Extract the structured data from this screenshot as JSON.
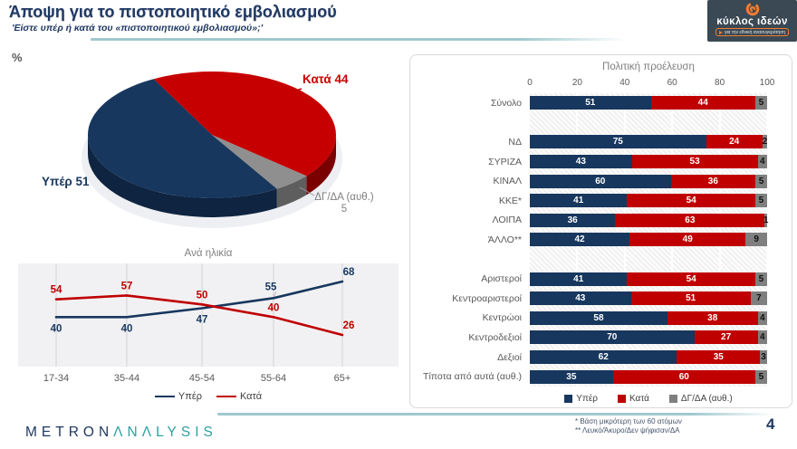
{
  "header": {
    "title": "Άποψη για το πιστοποιητικό εμβολιασμού",
    "subtitle": "'Είστε υπέρ ή κατά του «πιστοποιητικού εμβολιασμού»;'",
    "unit_label": "%"
  },
  "logo": {
    "name": "κύκλος ιδεών",
    "tagline": "για την εθνική ανασυγκρότηση"
  },
  "colors": {
    "navy": "#17375E",
    "red": "#C00000",
    "gray": "#7F7F7F",
    "divider_teal": "#9FC8CE",
    "logo_orange": "#ED7D31"
  },
  "chart_data": [
    {
      "id": "overall-pie",
      "type": "pie",
      "slices": [
        {
          "label": "Υπέρ",
          "value": 51,
          "color": "#17375E",
          "dark": "#0E2440"
        },
        {
          "label": "Κατά",
          "value": 44,
          "color": "#C60000",
          "dark": "#7A0000"
        },
        {
          "label": "ΔΓ/ΔΑ (αυθ.)",
          "value": 5,
          "color": "#8F8F8F",
          "dark": "#5E5E5E"
        }
      ],
      "start_angle_deg": -28,
      "draw_order": [
        1,
        2,
        0
      ],
      "labels": {
        "yper": "Υπέρ 51",
        "kata": "Κατά 44",
        "dgda_line1": "ΔΓ/ΔΑ (αυθ.)",
        "dgda_line2": "5"
      }
    },
    {
      "id": "age-line",
      "type": "line",
      "title": "Ανά ηλικία",
      "categories": [
        "17-34",
        "35-44",
        "45-54",
        "55-64",
        "65+"
      ],
      "series": [
        {
          "name": "Υπέρ",
          "color": "#17375E",
          "values": [
            40,
            40,
            47,
            55,
            68
          ],
          "label_side": [
            "below",
            "below",
            "below",
            "above",
            "above"
          ]
        },
        {
          "name": "Κατά",
          "color": "#C00000",
          "values": [
            54,
            57,
            50,
            40,
            26
          ],
          "label_side": [
            "above",
            "above",
            "above",
            "above",
            "above"
          ]
        }
      ],
      "ylim": [
        20,
        75
      ],
      "grid": "vertical",
      "legend_position": "bottom"
    },
    {
      "id": "political-bars",
      "type": "bar",
      "orientation": "horizontal",
      "stacked": true,
      "title": "Πολιτική προέλευση",
      "xlim": [
        0,
        100
      ],
      "xticks": [
        0,
        20,
        40,
        60,
        80,
        100
      ],
      "series_names": [
        "Υπέρ",
        "Κατά",
        "ΔΓ/ΔΑ (αυθ.)"
      ],
      "series_colors": [
        "#17375E",
        "#C00000",
        "#7F7F7F"
      ],
      "rows": [
        {
          "label": "Σύνολο",
          "values": [
            51,
            44,
            5
          ]
        },
        {
          "spacer": true
        },
        {
          "label": "ΝΔ",
          "values": [
            75,
            24,
            2
          ]
        },
        {
          "label": "ΣΥΡΙΖΑ",
          "values": [
            43,
            53,
            4
          ]
        },
        {
          "label": "ΚΙΝΑΛ",
          "values": [
            60,
            36,
            5
          ]
        },
        {
          "label": "ΚΚΕ*",
          "values": [
            41,
            54,
            5
          ]
        },
        {
          "label": "ΛΟΙΠΑ",
          "values": [
            36,
            63,
            1
          ]
        },
        {
          "label": "ΆΛΛΟ**",
          "values": [
            42,
            49,
            9
          ]
        },
        {
          "spacer": true
        },
        {
          "label": "Αριστεροί",
          "values": [
            41,
            54,
            5
          ]
        },
        {
          "label": "Κεντροαριστεροί",
          "values": [
            43,
            51,
            7
          ]
        },
        {
          "label": "Κεντρώοι",
          "values": [
            58,
            38,
            4
          ]
        },
        {
          "label": "Κεντροδεξιοί",
          "values": [
            70,
            27,
            4
          ]
        },
        {
          "label": "Δεξιοί",
          "values": [
            62,
            35,
            3
          ]
        },
        {
          "label": "Τίποτα από αυτά (αυθ.)",
          "values": [
            35,
            60,
            5
          ]
        }
      ],
      "legend_position": "bottom"
    }
  ],
  "footer": {
    "brand_primary": "METRON",
    "brand_secondary": "ΛNΛLYSIS",
    "footnote1": "*  Βάση μικρότερη των 60 ατόμων",
    "footnote2": "** Λευκό/Άκυρο/Δεν ψήφισαν/ΔΑ",
    "page_number": "4"
  }
}
